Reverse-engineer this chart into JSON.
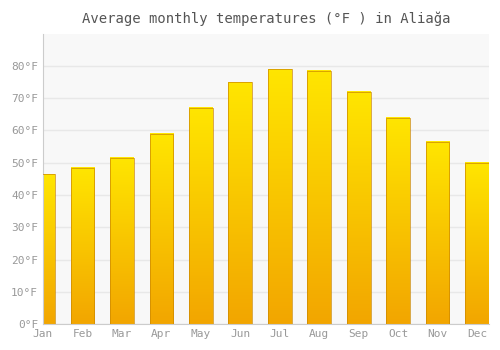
{
  "title": "Average monthly temperatures (°F ) in Aliağa",
  "months": [
    "Jan",
    "Feb",
    "Mar",
    "Apr",
    "May",
    "Jun",
    "Jul",
    "Aug",
    "Sep",
    "Oct",
    "Nov",
    "Dec"
  ],
  "values": [
    46.5,
    48.5,
    51.5,
    59.0,
    67.0,
    75.0,
    79.0,
    78.5,
    72.0,
    64.0,
    56.5,
    50.0
  ],
  "bar_color_light": "#FFCC44",
  "bar_color_dark": "#F5A400",
  "bar_edge_color": "#CC8800",
  "background_color": "#FFFFFF",
  "plot_bg_color": "#F8F8F8",
  "grid_color": "#E8E8E8",
  "tick_label_color": "#999999",
  "title_color": "#555555",
  "ylim": [
    0,
    90
  ],
  "yticks": [
    0,
    10,
    20,
    30,
    40,
    50,
    60,
    70,
    80
  ],
  "ytick_labels": [
    "0°F",
    "10°F",
    "20°F",
    "30°F",
    "40°F",
    "50°F",
    "60°F",
    "70°F",
    "80°F"
  ],
  "bar_width": 0.6,
  "title_fontsize": 10
}
